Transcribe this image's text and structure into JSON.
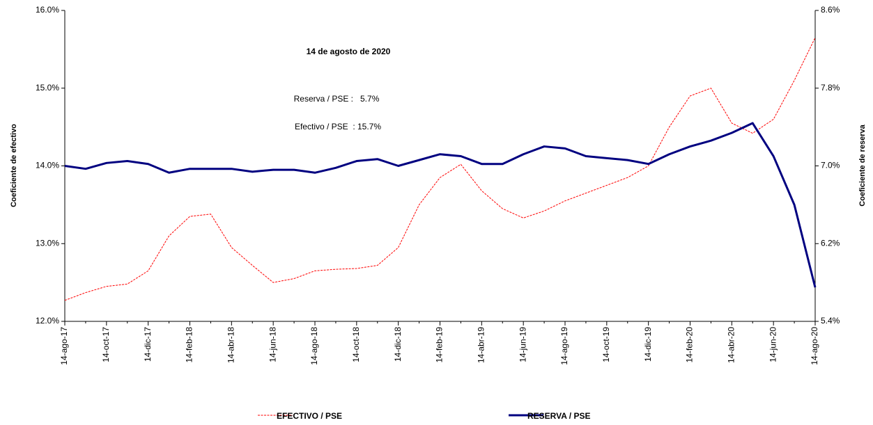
{
  "chart_data": {
    "type": "line",
    "annotations": [
      "14 de agosto de 2020",
      "Reserva / PSE :   5.7%",
      "Efectivo / PSE  : 15.7%"
    ],
    "y_label": "Coeficiente de efectivo",
    "y2_label": "Coeficiente de reserva",
    "categories": [
      "14-ago-17",
      null,
      "14-oct-17",
      null,
      "14-dic-17",
      null,
      "14-feb-18",
      null,
      "14-abr-18",
      null,
      "14-jun-18",
      null,
      "14-ago-18",
      null,
      "14-oct-18",
      null,
      "14-dic-18",
      null,
      "14-feb-19",
      null,
      "14-abr-19",
      null,
      "14-jun-19",
      null,
      "14-ago-19",
      null,
      "14-oct-19",
      null,
      "14-dic-19",
      null,
      "14-feb-20",
      null,
      "14-abr-20",
      null,
      "14-jun-20",
      null,
      "14-ago-20"
    ],
    "series": [
      {
        "name": "EFECTIVO / PSE",
        "color": "#ff0000",
        "axis": "y",
        "values": [
          12.27,
          12.37,
          12.45,
          12.48,
          12.65,
          13.1,
          13.35,
          13.38,
          12.95,
          12.72,
          12.5,
          12.55,
          12.65,
          12.67,
          12.68,
          12.72,
          12.95,
          13.5,
          13.85,
          14.02,
          13.68,
          13.45,
          13.33,
          13.42,
          13.55,
          13.65,
          13.75,
          13.85,
          14.0,
          14.5,
          14.9,
          15.0,
          14.55,
          14.42,
          14.6,
          15.1,
          15.65
        ]
      },
      {
        "name": "RESERVA / PSE",
        "color": "#000080",
        "axis": "y2",
        "values": [
          7.0,
          6.97,
          7.03,
          7.05,
          7.02,
          6.93,
          6.97,
          6.97,
          6.97,
          6.94,
          6.96,
          6.96,
          6.93,
          6.98,
          7.05,
          7.07,
          7.0,
          7.06,
          7.12,
          7.1,
          7.02,
          7.02,
          7.12,
          7.2,
          7.18,
          7.1,
          7.08,
          7.06,
          7.02,
          7.12,
          7.2,
          7.26,
          7.34,
          7.44,
          7.1,
          6.6,
          5.75
        ]
      }
    ],
    "ylim": [
      12,
      16
    ],
    "yticks": [
      {
        "value": 12,
        "label": "12.0%"
      },
      {
        "value": 13,
        "label": "13.0%"
      },
      {
        "value": 14,
        "label": "14.0%"
      },
      {
        "value": 15,
        "label": "15.0%"
      },
      {
        "value": 16,
        "label": "16.0%"
      }
    ],
    "y2lim": [
      5.4,
      8.6
    ],
    "y2ticks": [
      {
        "value": 5.4,
        "label": "5.4%"
      },
      {
        "value": 6.2,
        "label": "6.2%"
      },
      {
        "value": 7.0,
        "label": "7.0%"
      },
      {
        "value": 7.8,
        "label": "7.8%"
      },
      {
        "value": 8.6,
        "label": "8.6%"
      }
    ],
    "grid": false,
    "legend": "bottom"
  }
}
